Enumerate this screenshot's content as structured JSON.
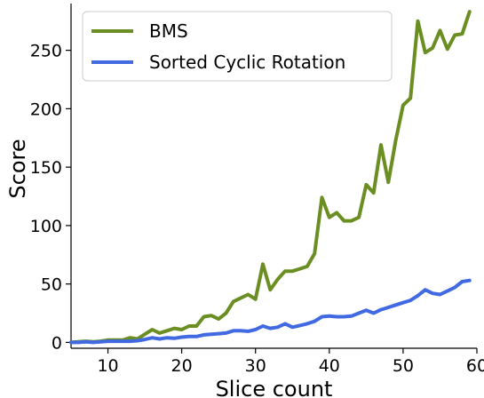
{
  "chart_data": {
    "type": "line",
    "title": "",
    "xlabel": "Slice count",
    "ylabel": "Score",
    "xlim": [
      5,
      60
    ],
    "ylim": [
      -5,
      290
    ],
    "xticks": [
      10,
      20,
      30,
      40,
      50,
      60
    ],
    "yticks": [
      0,
      50,
      100,
      150,
      200,
      250
    ],
    "grid": false,
    "legend_position": "top-left",
    "x": [
      5,
      6,
      7,
      8,
      9,
      10,
      11,
      12,
      13,
      14,
      15,
      16,
      17,
      18,
      19,
      20,
      21,
      22,
      23,
      24,
      25,
      26,
      27,
      28,
      29,
      30,
      31,
      32,
      33,
      34,
      35,
      36,
      37,
      38,
      39,
      40,
      41,
      42,
      43,
      44,
      45,
      46,
      47,
      48,
      49,
      50,
      51,
      52,
      53,
      54,
      55,
      56,
      57,
      58,
      59
    ],
    "series": [
      {
        "name": "BMS",
        "color": "#6b8e23",
        "values": [
          0,
          0.5,
          1,
          0.5,
          1,
          2,
          2,
          2,
          4,
          3,
          7,
          11,
          8,
          10,
          12,
          11,
          14,
          14,
          22,
          23,
          20,
          25,
          35,
          38,
          41,
          37,
          67,
          45,
          54,
          61,
          61,
          63,
          65,
          76,
          124,
          107,
          111,
          104,
          104,
          107,
          135,
          128,
          169,
          137,
          173,
          203,
          209,
          275,
          248,
          252,
          267,
          251,
          263,
          264,
          283
        ]
      },
      {
        "name": "Sorted Cyclic Rotation",
        "color": "#4169e1",
        "values": [
          0,
          0,
          0.5,
          0,
          0.5,
          1,
          1,
          1,
          1,
          1.5,
          2.5,
          4,
          3,
          4,
          3.5,
          4.5,
          5,
          5,
          6.5,
          7,
          7.5,
          8,
          10,
          10,
          9.5,
          11,
          14,
          12,
          13,
          16,
          13,
          14.5,
          16,
          18,
          22,
          22.5,
          22,
          22,
          22.5,
          25,
          27.5,
          25,
          28,
          30,
          32,
          34,
          36,
          40,
          45,
          42,
          41,
          44,
          47,
          52,
          53
        ]
      }
    ]
  }
}
